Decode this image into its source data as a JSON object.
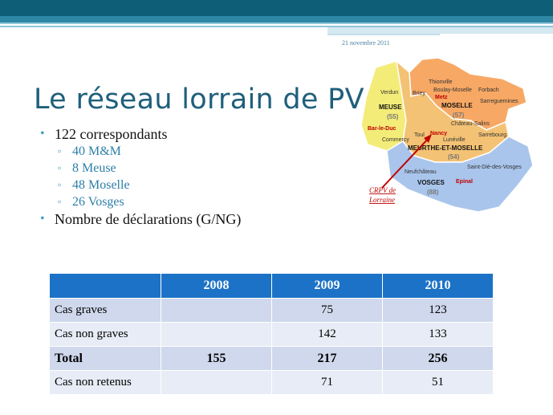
{
  "header": {
    "date": "21 novembre 2011"
  },
  "slide": {
    "title": "Le réseau lorrain de PV"
  },
  "bullets": {
    "correspondants": "122 correspondants",
    "sub": [
      "40 M&M",
      "8 Meuse",
      "48 Moselle",
      "26 Vosges"
    ],
    "declarations": "Nombre de déclarations (G/NG)"
  },
  "map": {
    "departments": {
      "meuse": "MEUSE",
      "meuse_count": "(55)",
      "moselle": "MOSELLE",
      "moselle_count": "(57)",
      "mm": "MEURTHE-ET-MOSELLE",
      "mm_count": "(54)",
      "vosges": "VOSGES",
      "vosges_count": "(88)"
    },
    "cities": {
      "thionville": "Thionville",
      "boulay": "Boulay-Moselle",
      "forbach": "Forbach",
      "verdun": "Verdun",
      "briey": "Briey",
      "metz": "Metz",
      "sarreguemines": "Sarreguemines",
      "chateau": "Château-Salins",
      "sarrebourg": "Sarrebourg",
      "barleduc": "Bar-le-Duc",
      "commercy": "Commercy",
      "toul": "Toul",
      "nancy": "Nancy",
      "luneville": "Lunéville",
      "neufchateau": "Neufchâteau",
      "saintdie": "Saint-Dié-des-Vosges",
      "epinal": "Epinal"
    },
    "crpv_label_1": "CRPV de",
    "crpv_label_2": "Lorraine",
    "colors": {
      "meuse": "#f4ec78",
      "moselle": "#f7a864",
      "mm": "#f3c274",
      "vosges": "#a9c5ec",
      "accent": "#c00000"
    }
  },
  "table": {
    "headers": [
      "",
      "2008",
      "2009",
      "2010"
    ],
    "rows": [
      [
        "Cas graves",
        "",
        "75",
        "123"
      ],
      [
        "Cas non graves",
        "",
        "142",
        "133"
      ],
      [
        "Total",
        "155",
        "217",
        "256"
      ],
      [
        "Cas non retenus",
        "",
        "71",
        "51"
      ]
    ]
  }
}
